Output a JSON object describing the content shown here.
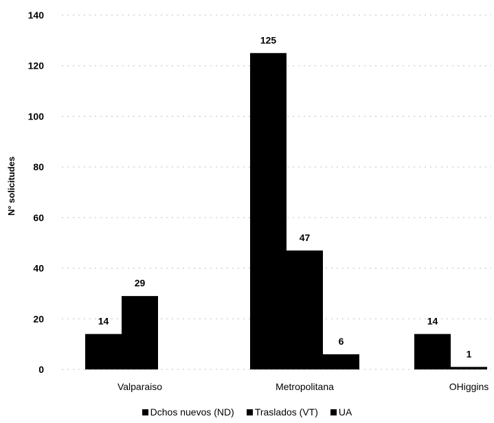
{
  "chart_data": {
    "type": "bar",
    "categories": [
      "Valparaiso",
      "Metropolitana",
      "OHiggins"
    ],
    "series": [
      {
        "name": "Dchos nuevos (ND)",
        "values": [
          14,
          125,
          14
        ],
        "color": "#000000"
      },
      {
        "name": "Traslados (VT)",
        "values": [
          29,
          47,
          1
        ],
        "color": "#000000"
      },
      {
        "name": "UA",
        "values": [
          null,
          6,
          null
        ],
        "color": "#000000"
      }
    ],
    "title": "",
    "xlabel": "",
    "ylabel": "N° solicitudes",
    "ylim": [
      0,
      140
    ],
    "yticks": [
      0,
      20,
      40,
      60,
      80,
      100,
      120,
      140
    ],
    "grid": true,
    "legend_position": "bottom"
  }
}
